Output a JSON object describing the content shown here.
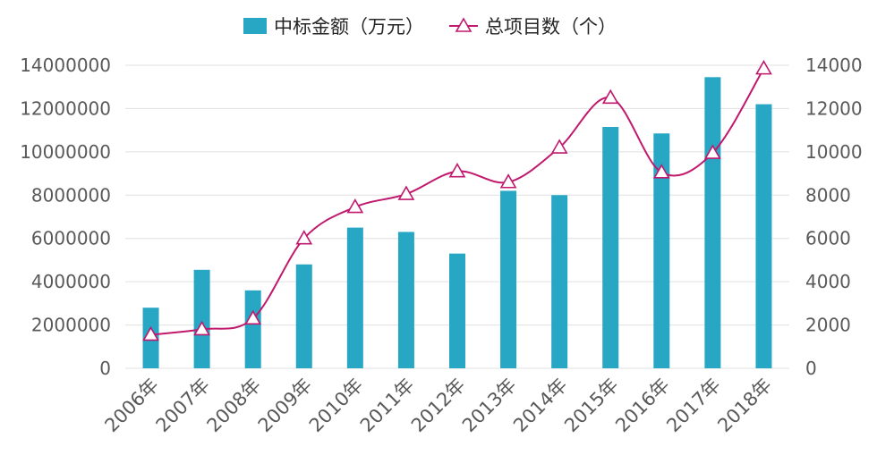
{
  "chart_data": {
    "type": "bar",
    "categories": [
      "2006年",
      "2007年",
      "2008年",
      "2009年",
      "2010年",
      "2011年",
      "2012年",
      "2013年",
      "2014年",
      "2015年",
      "2016年",
      "2017年",
      "2018年"
    ],
    "series": [
      {
        "name": "中标金额（万元）",
        "type": "bar",
        "axis": "left",
        "color": "#27a7c4",
        "values": [
          2800000,
          4550000,
          3600000,
          4800000,
          6500000,
          6300000,
          5300000,
          8200000,
          8000000,
          11150000,
          10850000,
          13450000,
          12200000
        ]
      },
      {
        "name": "总项目数（个）",
        "type": "line",
        "axis": "right",
        "color": "#c0186c",
        "smooth": true,
        "marker": "triangle-open",
        "values": [
          1550,
          1800,
          2300,
          6000,
          7450,
          8050,
          9100,
          8600,
          10200,
          12500,
          9050,
          9950,
          13850
        ]
      }
    ],
    "y_left": {
      "min": 0,
      "max": 14000000,
      "ticks": [
        0,
        2000000,
        4000000,
        6000000,
        8000000,
        10000000,
        12000000,
        14000000
      ]
    },
    "y_right": {
      "min": 0,
      "max": 14000,
      "ticks": [
        0,
        2000,
        4000,
        6000,
        8000,
        10000,
        12000,
        14000
      ]
    },
    "grid": true,
    "legend_position": "top-center",
    "x_tick_rotation": "-45"
  }
}
